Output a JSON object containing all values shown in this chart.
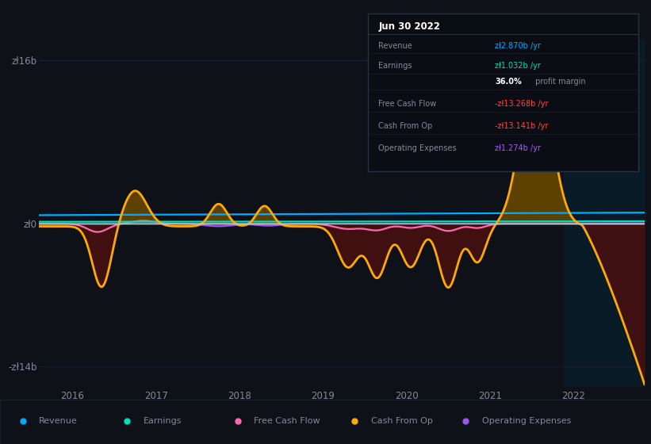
{
  "background_color": "#0e1117",
  "plot_bg_color": "#0e1117",
  "ylim": [
    -16,
    18
  ],
  "yticks": [
    -14,
    0,
    16
  ],
  "ytick_labels": [
    "-zł14b",
    "zł0",
    "zł16b"
  ],
  "xlim_start": 2015.6,
  "xlim_end": 2022.85,
  "xticks": [
    2016,
    2017,
    2018,
    2019,
    2020,
    2021,
    2022
  ],
  "grid_color": "#1e2535",
  "zero_line_color": "#cccccc",
  "revenue_color": "#00aaff",
  "earnings_color": "#00ddbb",
  "fcf_color": "#ff69b4",
  "cashfromop_color": "#ffaa00",
  "opex_color": "#9955ee",
  "fill_positive_color": "#6b4a00",
  "fill_negative_color": "#4a1010",
  "teal_bg_color": "#0a2535",
  "legend_items": [
    {
      "label": "Revenue",
      "color": "#00aaff"
    },
    {
      "label": "Earnings",
      "color": "#00ddbb"
    },
    {
      "label": "Free Cash Flow",
      "color": "#ff69b4"
    },
    {
      "label": "Cash From Op",
      "color": "#ffaa00"
    },
    {
      "label": "Operating Expenses",
      "color": "#9955ee"
    }
  ],
  "info_box_title": "Jun 30 2022",
  "info_rows": [
    {
      "label": "Revenue",
      "value": "zł2.870b /yr",
      "vcolor": "#00aaff"
    },
    {
      "label": "Earnings",
      "value": "zł1.032b /yr",
      "vcolor": "#00ddbb"
    },
    {
      "label": "",
      "value": "36.0%",
      "vcolor": "#ffffff",
      "suffix": " profit margin"
    },
    {
      "label": "Free Cash Flow",
      "value": "-zł13.268b /yr",
      "vcolor": "#ff4444"
    },
    {
      "label": "Cash From Op",
      "value": "-zł13.141b /yr",
      "vcolor": "#ff4444"
    },
    {
      "label": "Operating Expenses",
      "value": "zł1.274b /yr",
      "vcolor": "#aa55ff"
    }
  ]
}
